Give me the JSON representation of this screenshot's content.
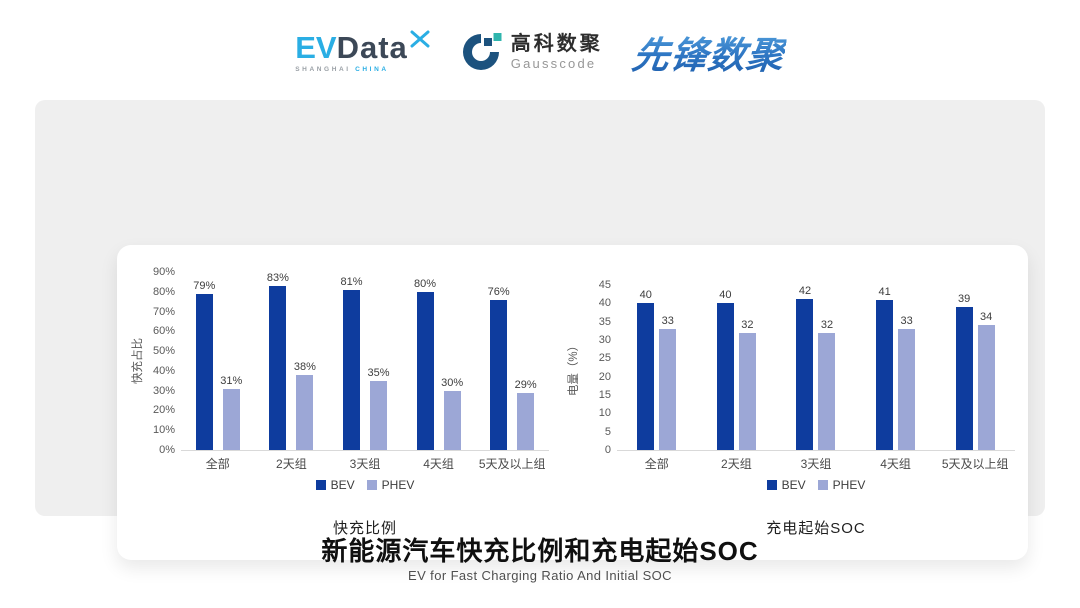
{
  "header": {
    "evdata": {
      "ev": "EV",
      "data": "Data",
      "caption_left": "SHANGHAI",
      "caption_right": "CHINA",
      "ev_color": "#2aaee4",
      "data_color": "#3c4857"
    },
    "gausscode": {
      "name_cn": "高科数聚",
      "name_en": "Gausscode",
      "circle_color": "#1c527e",
      "accent_color": "#2fb5ad"
    },
    "xianfeng": {
      "name": "先锋数聚",
      "color_top": "#5aa8e2",
      "color_bottom": "#1d5dab"
    }
  },
  "chart_data": [
    {
      "type": "bar",
      "title": "快充比例",
      "ylabel": "快充占比",
      "categories": [
        "全部",
        "2天组",
        "3天组",
        "4天组",
        "5天及以上组"
      ],
      "series": [
        {
          "name": "BEV",
          "color": "#0e3c9e",
          "values": [
            79,
            83,
            81,
            80,
            76
          ],
          "labels": [
            "79%",
            "83%",
            "81%",
            "80%",
            "76%"
          ]
        },
        {
          "name": "PHEV",
          "color": "#9ca7d6",
          "values": [
            31,
            38,
            35,
            30,
            29
          ],
          "labels": [
            "31%",
            "38%",
            "35%",
            "30%",
            "29%"
          ]
        }
      ],
      "ylim": [
        0,
        90
      ],
      "yticks": [
        "90%",
        "80%",
        "70%",
        "60%",
        "50%",
        "40%",
        "30%",
        "20%",
        "10%",
        "0%"
      ],
      "grid": false,
      "legend_position": "bottom"
    },
    {
      "type": "bar",
      "title": "充电起始SOC",
      "ylabel": "电量（%）",
      "categories": [
        "全部",
        "2天组",
        "3天组",
        "4天组",
        "5天及以上组"
      ],
      "series": [
        {
          "name": "BEV",
          "color": "#0e3c9e",
          "values": [
            40,
            40,
            42,
            41,
            39
          ],
          "labels": [
            "40",
            "40",
            "42",
            "41",
            "39"
          ]
        },
        {
          "name": "PHEV",
          "color": "#9ca7d6",
          "values": [
            33,
            32,
            32,
            33,
            34
          ],
          "labels": [
            "33",
            "32",
            "32",
            "33",
            "34"
          ]
        }
      ],
      "ylim": [
        0,
        45
      ],
      "yticks": [
        "45",
        "40",
        "35",
        "30",
        "25",
        "20",
        "15",
        "10",
        "5",
        "0"
      ],
      "grid": false,
      "legend_position": "bottom"
    }
  ],
  "footer": {
    "title": "新能源汽车快充比例和充电起始SOC",
    "subtitle": "EV for Fast Charging Ratio And Initial SOC"
  }
}
